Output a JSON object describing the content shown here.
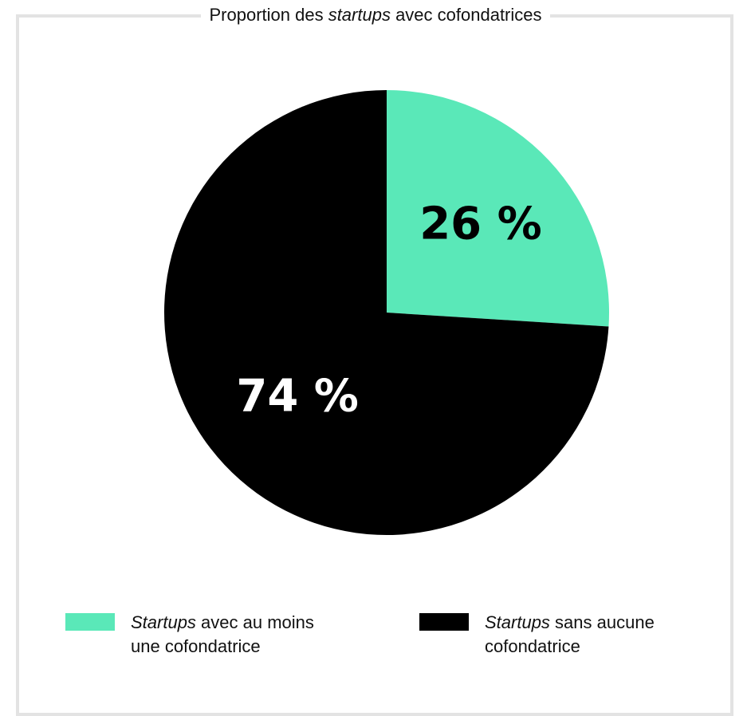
{
  "title": {
    "prefix": "Proportion des ",
    "emphasis": "startups",
    "suffix": " avec cofondatrices"
  },
  "chart_data": {
    "type": "pie",
    "title": "Proportion des startups avec cofondatrices",
    "categories": [
      "Startups avec au moins une cofondatrice",
      "Startups sans aucune cofondatrice"
    ],
    "values": [
      26,
      74
    ],
    "labels": [
      "26 %",
      "74 %"
    ],
    "colors": [
      "#5ae8b8",
      "#000000"
    ],
    "label_colors": [
      "#000000",
      "#ffffff"
    ],
    "start_angle_deg": 0,
    "direction": "clockwise",
    "legend": "bottom"
  },
  "legend": {
    "items": [
      {
        "emphasis": "Startups",
        "line1_rest": " avec au moins",
        "line2": "une cofondatrice",
        "color": "#5ae8b8"
      },
      {
        "emphasis": "Startups",
        "line1_rest": " sans aucune",
        "line2": "cofondatrice",
        "color": "#000000"
      }
    ]
  }
}
